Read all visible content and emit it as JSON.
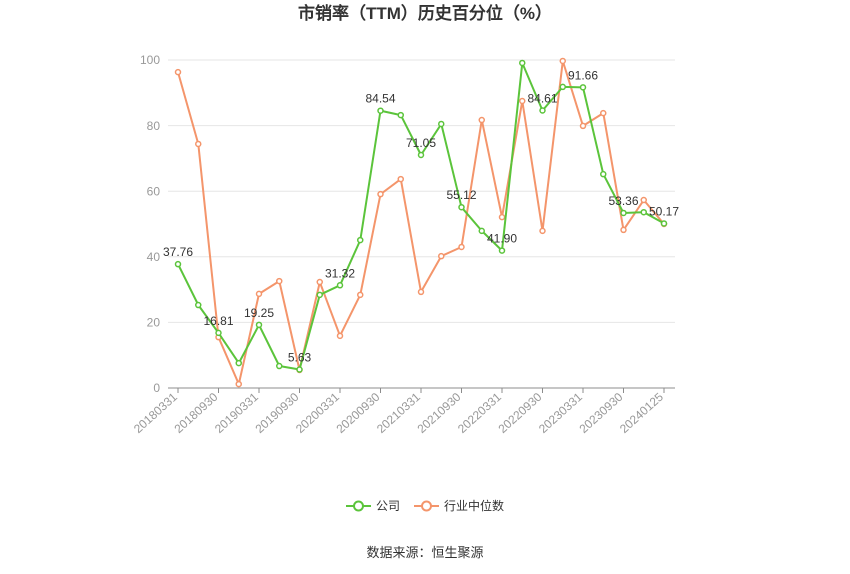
{
  "chart_data": {
    "type": "line",
    "title": "市销率（TTM）历史百分位（%）",
    "categories": [
      "20180331",
      "",
      "20180930",
      "",
      "20190331",
      "",
      "20190930",
      "",
      "20200331",
      "",
      "20200930",
      "",
      "20210331",
      "",
      "20210930",
      "",
      "20220331",
      "",
      "20220930",
      "",
      "20230331",
      "",
      "20230930",
      "",
      "20240125"
    ],
    "y_ticks": [
      "0",
      "20",
      "40",
      "60",
      "80",
      "100"
    ],
    "ylim": [
      0,
      100
    ],
    "grid": true,
    "legend_position": "bottom",
    "series": [
      {
        "name": "公司",
        "color": "#5bc43b",
        "values": [
          37.76,
          25.3,
          16.81,
          7.6,
          19.25,
          6.7,
          5.63,
          28.4,
          31.32,
          45.1,
          84.54,
          83.2,
          71.05,
          80.5,
          55.12,
          47.9,
          41.9,
          99.1,
          84.61,
          91.8,
          91.66,
          65.2,
          53.36,
          53.6,
          50.17
        ],
        "data_labels": [
          "37.76",
          "",
          "16.81",
          "",
          "19.25",
          "",
          "5.63",
          "",
          "31.32",
          "",
          "84.54",
          "",
          "71.05",
          "",
          "55.12",
          "",
          "41.90",
          "",
          "84.61",
          "",
          "91.66",
          "",
          "53.36",
          "",
          "50.17"
        ]
      },
      {
        "name": "行业中位数",
        "color": "#f4956b",
        "values": [
          96.3,
          74.4,
          15.5,
          1.2,
          28.7,
          32.6,
          5.5,
          32.3,
          15.9,
          28.4,
          59.1,
          63.7,
          29.3,
          40.2,
          43.0,
          81.7,
          52.1,
          87.5,
          47.9,
          99.7,
          79.9,
          83.8,
          48.2,
          57.3,
          50.0
        ]
      }
    ]
  },
  "source": "数据来源：恒生聚源"
}
